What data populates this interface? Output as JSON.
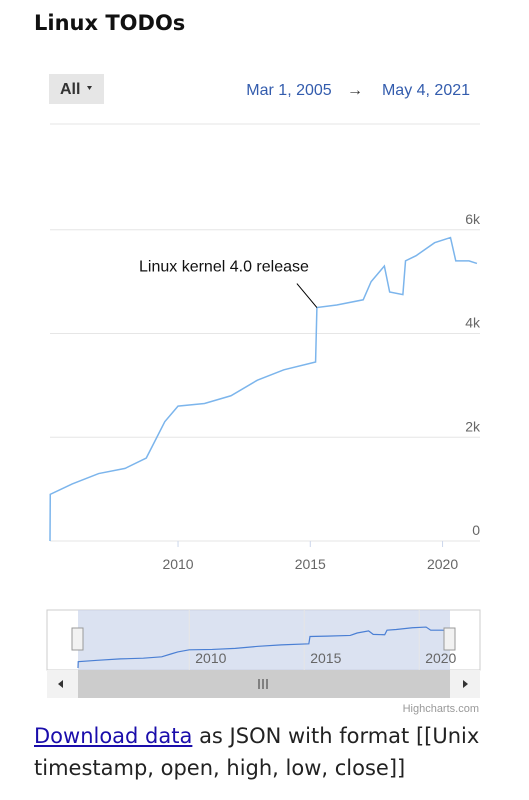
{
  "page": {
    "title": "Linux TODOs",
    "range_button": "All",
    "range_from": "Mar 1, 2005",
    "range_arrow": "→",
    "range_to": "May 4, 2021",
    "credit": "Highcharts.com",
    "link": "Download data",
    "footer": "as JSON with format [[Unix timestamp, open, high, low, close]]"
  },
  "chart_data": {
    "type": "line",
    "color": "#7cb5ec",
    "annotation": "Linux kernel 4.0 release",
    "x": [
      2005.16,
      2005.17,
      2006,
      2007,
      2008,
      2008.8,
      2009.2,
      2009.5,
      2010,
      2011,
      2012,
      2013,
      2014,
      2015.2,
      2015.25,
      2016,
      2017,
      2017.3,
      2017.8,
      2018,
      2018.5,
      2018.6,
      2019,
      2019.7,
      2020.3,
      2020.5,
      2021,
      2021.3
    ],
    "series": [
      {
        "name": "Linux TODOs",
        "color": "#7cb5ec",
        "values": [
          0,
          900,
          1100,
          1300,
          1400,
          1600,
          2000,
          2300,
          2600,
          2650,
          2800,
          3100,
          3300,
          3450,
          4500,
          4550,
          4650,
          5000,
          5300,
          4800,
          4750,
          5400,
          5500,
          5750,
          5850,
          5400,
          5400,
          5350
        ]
      }
    ],
    "xlim": [
      2005.16,
      2021.34
    ],
    "xticks": [
      2010,
      2015,
      2020
    ],
    "ylim": [
      0,
      8000
    ],
    "yticks": [
      0,
      {
        "value": 2000,
        "label": "2k"
      },
      {
        "value": 4000,
        "label": "4k"
      },
      {
        "value": 6000,
        "label": "6k"
      }
    ],
    "grid": true
  }
}
